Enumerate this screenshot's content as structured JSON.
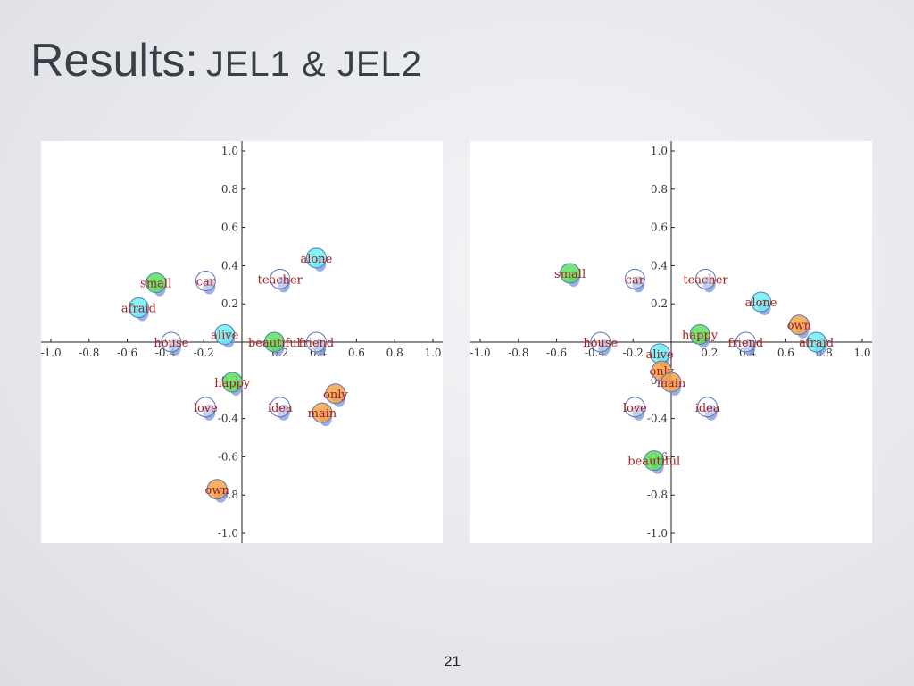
{
  "slide": {
    "title_main": "Results:",
    "title_sub": "JEL1 & JEL2",
    "page_number": "21"
  },
  "colors": {
    "label": "#a51e1e",
    "green": "#5de35d",
    "cyan": "#6cf2f5",
    "orange": "#f5a54a",
    "outline": "#5b76b8",
    "shadow": "#7a94d8"
  },
  "chart_data": [
    {
      "type": "scatter",
      "name": "JEL1",
      "xlim": [
        -1.0,
        1.0
      ],
      "ylim": [
        -1.0,
        1.0
      ],
      "xticks": [
        "-1.0",
        "-0.8",
        "-0.6",
        "-0.4",
        "-0.2",
        "0.2",
        "0.4",
        "0.6",
        "0.8",
        "1.0"
      ],
      "yticks": [
        "1.0",
        "0.8",
        "0.6",
        "0.4",
        "0.2",
        "-0.2",
        "-0.4",
        "-0.6",
        "-0.8",
        "-1.0"
      ],
      "grid": false,
      "points": [
        {
          "label": "alone",
          "x": 0.39,
          "y": 0.44,
          "color": "cyan"
        },
        {
          "label": "small",
          "x": -0.45,
          "y": 0.31,
          "color": "green"
        },
        {
          "label": "car",
          "x": -0.19,
          "y": 0.32,
          "color": "none"
        },
        {
          "label": "teacher",
          "x": 0.2,
          "y": 0.33,
          "color": "none"
        },
        {
          "label": "afraid",
          "x": -0.54,
          "y": 0.18,
          "color": "cyan"
        },
        {
          "label": "alive",
          "x": -0.09,
          "y": 0.04,
          "color": "cyan"
        },
        {
          "label": "house",
          "x": -0.37,
          "y": 0.0,
          "color": "none"
        },
        {
          "label": "beautiful",
          "x": 0.17,
          "y": 0.0,
          "color": "green"
        },
        {
          "label": "friend",
          "x": 0.39,
          "y": 0.0,
          "color": "none"
        },
        {
          "label": "happy",
          "x": -0.05,
          "y": -0.21,
          "color": "green"
        },
        {
          "label": "love",
          "x": -0.19,
          "y": -0.34,
          "color": "none"
        },
        {
          "label": "idea",
          "x": 0.2,
          "y": -0.34,
          "color": "none"
        },
        {
          "label": "only",
          "x": 0.49,
          "y": -0.27,
          "color": "orange"
        },
        {
          "label": "main",
          "x": 0.42,
          "y": -0.37,
          "color": "orange"
        },
        {
          "label": "own",
          "x": -0.13,
          "y": -0.77,
          "color": "orange"
        }
      ]
    },
    {
      "type": "scatter",
      "name": "JEL2",
      "xlim": [
        -1.0,
        1.0
      ],
      "ylim": [
        -1.0,
        1.0
      ],
      "xticks": [
        "-1.0",
        "-0.8",
        "-0.6",
        "-0.4",
        "-0.2",
        "0.2",
        "0.4",
        "0.6",
        "0.8",
        "1.0"
      ],
      "yticks": [
        "1.0",
        "0.8",
        "0.6",
        "0.4",
        "0.2",
        "-0.2",
        "-0.4",
        "-0.6",
        "-0.8",
        "-1.0"
      ],
      "grid": false,
      "points": [
        {
          "label": "small",
          "x": -0.53,
          "y": 0.36,
          "color": "green"
        },
        {
          "label": "car",
          "x": -0.19,
          "y": 0.33,
          "color": "none"
        },
        {
          "label": "teacher",
          "x": 0.18,
          "y": 0.33,
          "color": "none"
        },
        {
          "label": "alone",
          "x": 0.47,
          "y": 0.21,
          "color": "cyan"
        },
        {
          "label": "happy",
          "x": 0.15,
          "y": 0.04,
          "color": "green"
        },
        {
          "label": "friend",
          "x": 0.39,
          "y": 0.0,
          "color": "none"
        },
        {
          "label": "own",
          "x": 0.67,
          "y": 0.09,
          "color": "orange"
        },
        {
          "label": "afraid",
          "x": 0.76,
          "y": 0.0,
          "color": "cyan"
        },
        {
          "label": "house",
          "x": -0.37,
          "y": 0.0,
          "color": "none"
        },
        {
          "label": "alive",
          "x": -0.06,
          "y": -0.06,
          "color": "cyan"
        },
        {
          "label": "only",
          "x": -0.05,
          "y": -0.15,
          "color": "orange"
        },
        {
          "label": "main",
          "x": 0.0,
          "y": -0.21,
          "color": "orange"
        },
        {
          "label": "love",
          "x": -0.19,
          "y": -0.34,
          "color": "none"
        },
        {
          "label": "idea",
          "x": 0.19,
          "y": -0.34,
          "color": "none"
        },
        {
          "label": "beautiful",
          "x": -0.09,
          "y": -0.62,
          "color": "green"
        }
      ]
    }
  ]
}
